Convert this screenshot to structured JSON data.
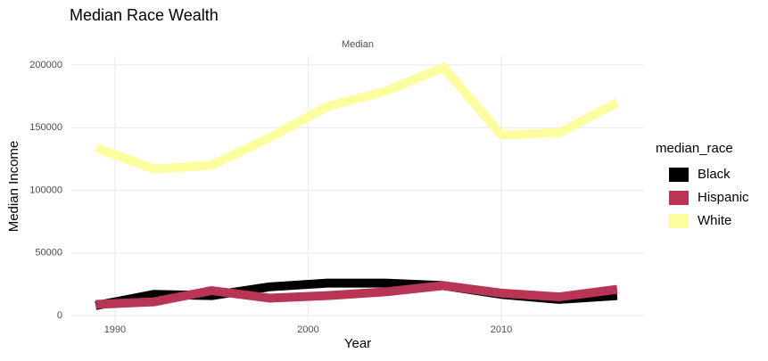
{
  "chart_data": {
    "type": "line",
    "title": "Median Race Wealth",
    "facet_label": "Median",
    "x_label": "Year",
    "y_label": "Median Income",
    "legend_title": "median_race",
    "x": [
      1989,
      1992,
      1995,
      1998,
      2001,
      2004,
      2007,
      2010,
      2013,
      2016
    ],
    "series": [
      {
        "name": "Black",
        "color": "#000000",
        "values": [
          8000,
          17000,
          16000,
          23000,
          26000,
          26000,
          24000,
          17000,
          13000,
          16000
        ]
      },
      {
        "name": "Hispanic",
        "color": "#b83555",
        "values": [
          9000,
          11000,
          20000,
          14000,
          16000,
          19000,
          24000,
          18000,
          15000,
          21000
        ]
      },
      {
        "name": "White",
        "color": "#fcfd9f",
        "values": [
          134000,
          117000,
          120000,
          142000,
          167000,
          179000,
          198000,
          144000,
          146000,
          170000
        ]
      }
    ],
    "xlim": [
      1987.74,
      2017.39
    ],
    "xticks": [
      1990,
      2000,
      2010
    ],
    "ylim": [
      -7000,
      207000
    ],
    "yticks": [
      0,
      50000,
      100000,
      150000,
      200000
    ],
    "grid": true,
    "legend": "right"
  }
}
